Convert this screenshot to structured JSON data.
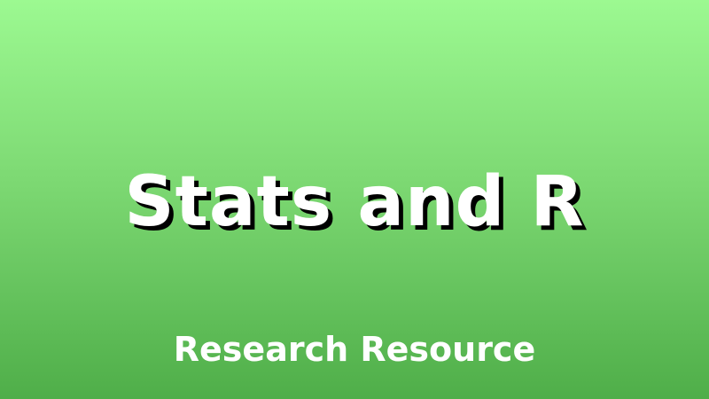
{
  "banner": {
    "title": "Stats and R",
    "subtitle": "Research Resource",
    "colors": {
      "gradient_top": "#9cf991",
      "gradient_bottom": "#4fae49",
      "text": "#ffffff",
      "shadow": "#000000"
    }
  }
}
